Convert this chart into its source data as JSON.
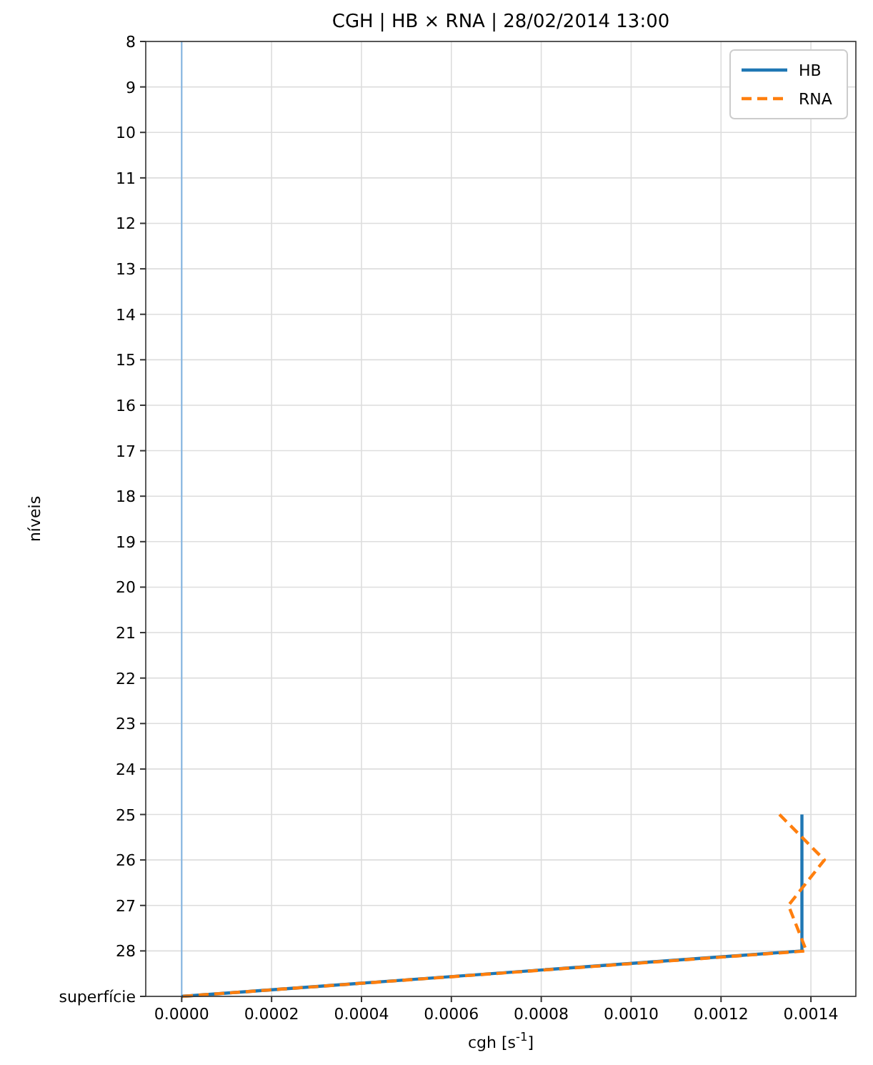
{
  "chart_data": {
    "type": "line",
    "title": "CGH | HB × RNA | 28/02/2014 13:00",
    "xlabel": "cgh [s$^{-1}$]",
    "ylabel": "níveis",
    "xlim": [
      -8e-05,
      0.0015
    ],
    "xticks": [
      {
        "value": 0,
        "label": "0.0000"
      },
      {
        "value": 0.0002,
        "label": "0.0002"
      },
      {
        "value": 0.0004,
        "label": "0.0004"
      },
      {
        "value": 0.0006,
        "label": "0.0006"
      },
      {
        "value": 0.0008,
        "label": "0.0008"
      },
      {
        "value": 0.001,
        "label": "0.0010"
      },
      {
        "value": 0.0012,
        "label": "0.0012"
      },
      {
        "value": 0.0014,
        "label": "0.0014"
      }
    ],
    "ylim": [
      29,
      8
    ],
    "yticks": [
      8,
      9,
      10,
      11,
      12,
      13,
      14,
      15,
      16,
      17,
      18,
      19,
      20,
      21,
      22,
      23,
      24,
      25,
      26,
      27,
      28,
      {
        "value": 29,
        "label": "superfície"
      }
    ],
    "grid": true,
    "legend": "top right",
    "orientation": "horizontal",
    "ref_lines": [
      {
        "axis": "x",
        "value": 0,
        "color": "#7fb2e0"
      }
    ],
    "series": [
      {
        "name": "HB",
        "color": "#1f77b4",
        "line_style": "solid",
        "x": [
          25,
          26,
          27,
          28,
          29
        ],
        "values": [
          0.00138,
          0.00138,
          0.00138,
          0.00138,
          0
        ]
      },
      {
        "name": "RNA",
        "color": "#ff7f0e",
        "line_style": "dashed",
        "x": [
          25,
          26,
          27,
          28,
          29
        ],
        "values": [
          0.00133,
          0.00143,
          0.00135,
          0.00139,
          0
        ]
      }
    ]
  }
}
